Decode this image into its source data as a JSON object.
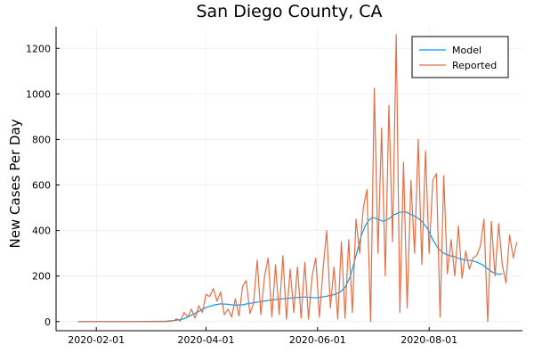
{
  "chart_data": {
    "type": "line",
    "title": "San Diego County, CA",
    "xlabel": "",
    "ylabel": "New Cases Per Day",
    "x_ticks": [
      "2020-02-01",
      "2020-04-01",
      "2020-06-01",
      "2020-08-01"
    ],
    "y_ticks": [
      0,
      200,
      400,
      600,
      800,
      1000,
      1200
    ],
    "ylim": [
      -40,
      1295
    ],
    "xlim": [
      "2020-01-10",
      "2020-09-21"
    ],
    "grid": true,
    "legend_position": "top-right",
    "series": [
      {
        "name": "Model",
        "color": "#009af9",
        "points": [
          [
            "2020-01-22",
            0
          ],
          [
            "2020-02-15",
            0
          ],
          [
            "2020-03-06",
            1
          ],
          [
            "2020-03-10",
            2
          ],
          [
            "2020-03-15",
            5
          ],
          [
            "2020-03-20",
            12
          ],
          [
            "2020-03-24",
            28
          ],
          [
            "2020-03-28",
            45
          ],
          [
            "2020-04-01",
            62
          ],
          [
            "2020-04-05",
            72
          ],
          [
            "2020-04-09",
            78
          ],
          [
            "2020-04-13",
            76
          ],
          [
            "2020-04-17",
            72
          ],
          [
            "2020-04-21",
            74
          ],
          [
            "2020-04-25",
            80
          ],
          [
            "2020-05-01",
            88
          ],
          [
            "2020-05-07",
            95
          ],
          [
            "2020-05-13",
            100
          ],
          [
            "2020-05-19",
            105
          ],
          [
            "2020-05-25",
            108
          ],
          [
            "2020-05-31",
            104
          ],
          [
            "2020-06-05",
            110
          ],
          [
            "2020-06-10",
            118
          ],
          [
            "2020-06-13",
            128
          ],
          [
            "2020-06-16",
            150
          ],
          [
            "2020-06-19",
            200
          ],
          [
            "2020-06-21",
            260
          ],
          [
            "2020-06-23",
            320
          ],
          [
            "2020-06-25",
            380
          ],
          [
            "2020-06-27",
            420
          ],
          [
            "2020-06-29",
            445
          ],
          [
            "2020-07-01",
            458
          ],
          [
            "2020-07-04",
            450
          ],
          [
            "2020-07-07",
            440
          ],
          [
            "2020-07-10",
            452
          ],
          [
            "2020-07-13",
            470
          ],
          [
            "2020-07-16",
            480
          ],
          [
            "2020-07-19",
            482
          ],
          [
            "2020-07-22",
            470
          ],
          [
            "2020-07-25",
            460
          ],
          [
            "2020-07-28",
            440
          ],
          [
            "2020-07-31",
            410
          ],
          [
            "2020-08-03",
            360
          ],
          [
            "2020-08-06",
            320
          ],
          [
            "2020-08-09",
            300
          ],
          [
            "2020-08-12",
            290
          ],
          [
            "2020-08-15",
            285
          ],
          [
            "2020-08-18",
            275
          ],
          [
            "2020-08-21",
            270
          ],
          [
            "2020-08-24",
            268
          ],
          [
            "2020-08-27",
            262
          ],
          [
            "2020-08-30",
            250
          ],
          [
            "2020-09-02",
            232
          ],
          [
            "2020-09-05",
            215
          ],
          [
            "2020-09-08",
            208
          ],
          [
            "2020-09-10",
            210
          ]
        ]
      },
      {
        "name": "Reported",
        "color": "#e26f46",
        "points": [
          [
            "2020-01-22",
            0
          ],
          [
            "2020-02-15",
            0
          ],
          [
            "2020-03-10",
            0
          ],
          [
            "2020-03-14",
            3
          ],
          [
            "2020-03-16",
            12
          ],
          [
            "2020-03-18",
            2
          ],
          [
            "2020-03-20",
            40
          ],
          [
            "2020-03-22",
            20
          ],
          [
            "2020-03-24",
            55
          ],
          [
            "2020-03-26",
            15
          ],
          [
            "2020-03-28",
            70
          ],
          [
            "2020-03-30",
            40
          ],
          [
            "2020-04-01",
            120
          ],
          [
            "2020-04-03",
            110
          ],
          [
            "2020-04-05",
            145
          ],
          [
            "2020-04-07",
            90
          ],
          [
            "2020-04-09",
            130
          ],
          [
            "2020-04-11",
            30
          ],
          [
            "2020-04-13",
            55
          ],
          [
            "2020-04-15",
            20
          ],
          [
            "2020-04-17",
            100
          ],
          [
            "2020-04-19",
            25
          ],
          [
            "2020-04-21",
            155
          ],
          [
            "2020-04-23",
            180
          ],
          [
            "2020-04-25",
            35
          ],
          [
            "2020-04-27",
            80
          ],
          [
            "2020-04-29",
            270
          ],
          [
            "2020-05-01",
            30
          ],
          [
            "2020-05-03",
            200
          ],
          [
            "2020-05-05",
            280
          ],
          [
            "2020-05-07",
            20
          ],
          [
            "2020-05-09",
            250
          ],
          [
            "2020-05-11",
            30
          ],
          [
            "2020-05-13",
            290
          ],
          [
            "2020-05-15",
            10
          ],
          [
            "2020-05-17",
            230
          ],
          [
            "2020-05-19",
            40
          ],
          [
            "2020-05-21",
            240
          ],
          [
            "2020-05-23",
            15
          ],
          [
            "2020-05-25",
            260
          ],
          [
            "2020-05-27",
            10
          ],
          [
            "2020-05-29",
            200
          ],
          [
            "2020-05-31",
            280
          ],
          [
            "2020-06-02",
            20
          ],
          [
            "2020-06-04",
            230
          ],
          [
            "2020-06-06",
            400
          ],
          [
            "2020-06-08",
            60
          ],
          [
            "2020-06-10",
            240
          ],
          [
            "2020-06-12",
            10
          ],
          [
            "2020-06-14",
            350
          ],
          [
            "2020-06-16",
            15
          ],
          [
            "2020-06-18",
            360
          ],
          [
            "2020-06-20",
            40
          ],
          [
            "2020-06-22",
            450
          ],
          [
            "2020-06-24",
            300
          ],
          [
            "2020-06-26",
            500
          ],
          [
            "2020-06-28",
            580
          ],
          [
            "2020-06-30",
            0
          ],
          [
            "2020-07-02",
            1025
          ],
          [
            "2020-07-04",
            300
          ],
          [
            "2020-07-06",
            850
          ],
          [
            "2020-07-08",
            200
          ],
          [
            "2020-07-10",
            950
          ],
          [
            "2020-07-12",
            350
          ],
          [
            "2020-07-14",
            1260
          ],
          [
            "2020-07-16",
            40
          ],
          [
            "2020-07-18",
            700
          ],
          [
            "2020-07-20",
            60
          ],
          [
            "2020-07-22",
            620
          ],
          [
            "2020-07-24",
            300
          ],
          [
            "2020-07-26",
            800
          ],
          [
            "2020-07-28",
            250
          ],
          [
            "2020-07-30",
            750
          ],
          [
            "2020-08-01",
            300
          ],
          [
            "2020-08-03",
            620
          ],
          [
            "2020-08-05",
            650
          ],
          [
            "2020-08-07",
            20
          ],
          [
            "2020-08-09",
            640
          ],
          [
            "2020-08-11",
            210
          ],
          [
            "2020-08-13",
            360
          ],
          [
            "2020-08-15",
            200
          ],
          [
            "2020-08-17",
            420
          ],
          [
            "2020-08-19",
            190
          ],
          [
            "2020-08-21",
            310
          ],
          [
            "2020-08-23",
            230
          ],
          [
            "2020-08-25",
            280
          ],
          [
            "2020-08-27",
            290
          ],
          [
            "2020-08-29",
            330
          ],
          [
            "2020-08-31",
            450
          ],
          [
            "2020-09-02",
            0
          ],
          [
            "2020-09-04",
            440
          ],
          [
            "2020-09-06",
            200
          ],
          [
            "2020-09-08",
            430
          ],
          [
            "2020-09-10",
            250
          ],
          [
            "2020-09-12",
            170
          ],
          [
            "2020-09-14",
            380
          ],
          [
            "2020-09-16",
            280
          ],
          [
            "2020-09-18",
            350
          ]
        ]
      }
    ]
  }
}
